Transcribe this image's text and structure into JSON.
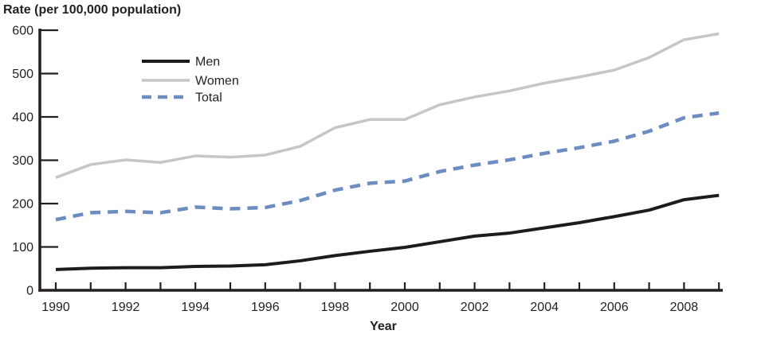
{
  "chart_data": {
    "type": "line",
    "title": "",
    "ylabel": "Rate (per 100,000 population)",
    "xlabel": "Year",
    "x": [
      1990,
      1991,
      1992,
      1993,
      1994,
      1995,
      1996,
      1997,
      1998,
      1999,
      2000,
      2001,
      2002,
      2003,
      2004,
      2005,
      2006,
      2007,
      2008,
      2009
    ],
    "x_tick_labels": [
      "1990",
      "1992",
      "1994",
      "1996",
      "1998",
      "2000",
      "2002",
      "2004",
      "2006",
      "2008"
    ],
    "yticks": [
      "0",
      "100",
      "200",
      "300",
      "400",
      "500",
      "600"
    ],
    "ylim": [
      0,
      600
    ],
    "xlim": [
      1990,
      2009
    ],
    "grid": false,
    "legend_position": "upper-left-inside",
    "axis_color": "#231f20",
    "text_color": "#231f20",
    "series": [
      {
        "name": "Men",
        "color": "#1c1c1c",
        "style": "solid",
        "values": [
          48,
          51,
          52,
          52,
          55,
          56,
          59,
          68,
          80,
          90,
          99,
          112,
          125,
          132,
          144,
          156,
          170,
          185,
          209,
          219
        ]
      },
      {
        "name": "Women",
        "color": "#c5c6c8",
        "style": "solid",
        "values": [
          260,
          290,
          301,
          295,
          310,
          307,
          312,
          332,
          375,
          394,
          394,
          428,
          446,
          460,
          478,
          492,
          508,
          537,
          578,
          592
        ]
      },
      {
        "name": "Total",
        "color": "#6d8cc1",
        "style": "dashed",
        "values": [
          163,
          179,
          182,
          179,
          192,
          188,
          191,
          207,
          231,
          247,
          252,
          274,
          289,
          301,
          316,
          329,
          344,
          367,
          398,
          409
        ]
      }
    ]
  }
}
